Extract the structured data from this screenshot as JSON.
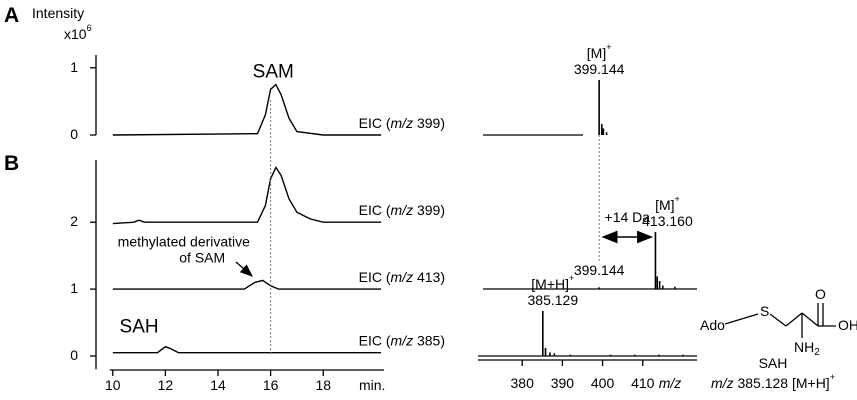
{
  "panel_labels": [
    "A",
    "B"
  ],
  "chart_data": [
    {
      "type": "line",
      "y_label": "Intensity",
      "y_unit": {
        "text": "x10",
        "sup": "6"
      },
      "xlim": [
        9.4,
        20.5
      ],
      "ylim": [
        0,
        1.19
      ],
      "yticks": [
        0,
        1
      ],
      "color": "#000000",
      "series": [
        {
          "name": "EIC (m/z 399)",
          "x": [
            10,
            15.5,
            15.8,
            16.0,
            16.2,
            16.4,
            16.7,
            17.0,
            18,
            20.2
          ],
          "values": [
            0,
            0.02,
            0.3,
            0.68,
            0.75,
            0.6,
            0.25,
            0.05,
            0,
            0
          ]
        }
      ],
      "annotations": [
        {
          "text": "SAM",
          "x": 16.1,
          "y": 0.93
        }
      ]
    },
    {
      "type": "line",
      "xlim": [
        9.4,
        20.5
      ],
      "ylim": [
        -0.2,
        2.93
      ],
      "xticks": [
        10,
        12,
        14,
        16,
        18
      ],
      "yticks": [
        0,
        1,
        2
      ],
      "x_label": "min.",
      "color": "#000000",
      "marker_x": 16,
      "series": [
        {
          "name": "EIC (m/z 399)",
          "x": [
            10,
            10.8,
            11,
            11.2,
            15.5,
            15.8,
            16.0,
            16.2,
            16.4,
            16.7,
            17.0,
            17.5,
            18,
            20.2
          ],
          "values": [
            1.98,
            2.0,
            2.03,
            2.0,
            2.0,
            2.25,
            2.65,
            2.82,
            2.7,
            2.35,
            2.15,
            2.05,
            2.0,
            2.0
          ]
        },
        {
          "name": "EIC (m/z 413)",
          "x": [
            10,
            15,
            15.4,
            15.7,
            16.0,
            16.3,
            20.2
          ],
          "values": [
            1,
            1,
            1.1,
            1.13,
            1.05,
            1.0,
            1.0
          ]
        },
        {
          "name": "EIC (m/z 385)",
          "x": [
            10,
            11.7,
            12.0,
            12.2,
            12.5,
            20.2
          ],
          "values": [
            0.05,
            0.05,
            0.14,
            0.11,
            0.05,
            0.05
          ]
        }
      ],
      "annotations": [
        {
          "text": "SAH",
          "x": 11.0,
          "y": 0.43
        },
        {
          "text": "methylated derivative",
          "x": 12.7,
          "y": 1.7
        },
        {
          "text": "of SAM",
          "x": 13.4,
          "y": 1.46
        }
      ]
    },
    {
      "type": "stick",
      "xlim": [
        369,
        423.5
      ],
      "xticks": [
        380,
        390,
        400,
        410
      ],
      "x_label": "m/z",
      "color": "#000000",
      "spectra": [
        {
          "x": [
            399.144,
            399.8,
            400.2,
            401
          ],
          "values": [
            100,
            20,
            12,
            5
          ],
          "peak_label": {
            "text": "[M]",
            "sup": "+",
            "value": "399.144"
          }
        },
        {
          "x": [
            399.144,
            413.16,
            413.6,
            414.2,
            415,
            418
          ],
          "values": [
            3,
            100,
            22,
            14,
            6,
            4
          ],
          "peak_label": {
            "text": "[M]",
            "sup": "+",
            "value": "413.160"
          },
          "minor_label": "399.144",
          "shift_label": "+14 Da"
        },
        {
          "x": [
            385.129,
            385.8,
            386.9,
            388,
            392,
            402,
            408,
            414,
            420
          ],
          "values": [
            100,
            18,
            8,
            6,
            3,
            3,
            3,
            3,
            3
          ],
          "peak_label": {
            "text": "[M+H]",
            "sup": "+",
            "value": "385.129"
          }
        }
      ]
    }
  ],
  "structure": {
    "name": "SAH",
    "atoms": {
      "ado": "Ado",
      "s": "S",
      "o": "O",
      "oh": "OH",
      "nh": "NH",
      "nh_sub": "2"
    },
    "caption": {
      "prefix": "m/z",
      "text": " 385.128 [M+H]",
      "sup": "+"
    }
  }
}
